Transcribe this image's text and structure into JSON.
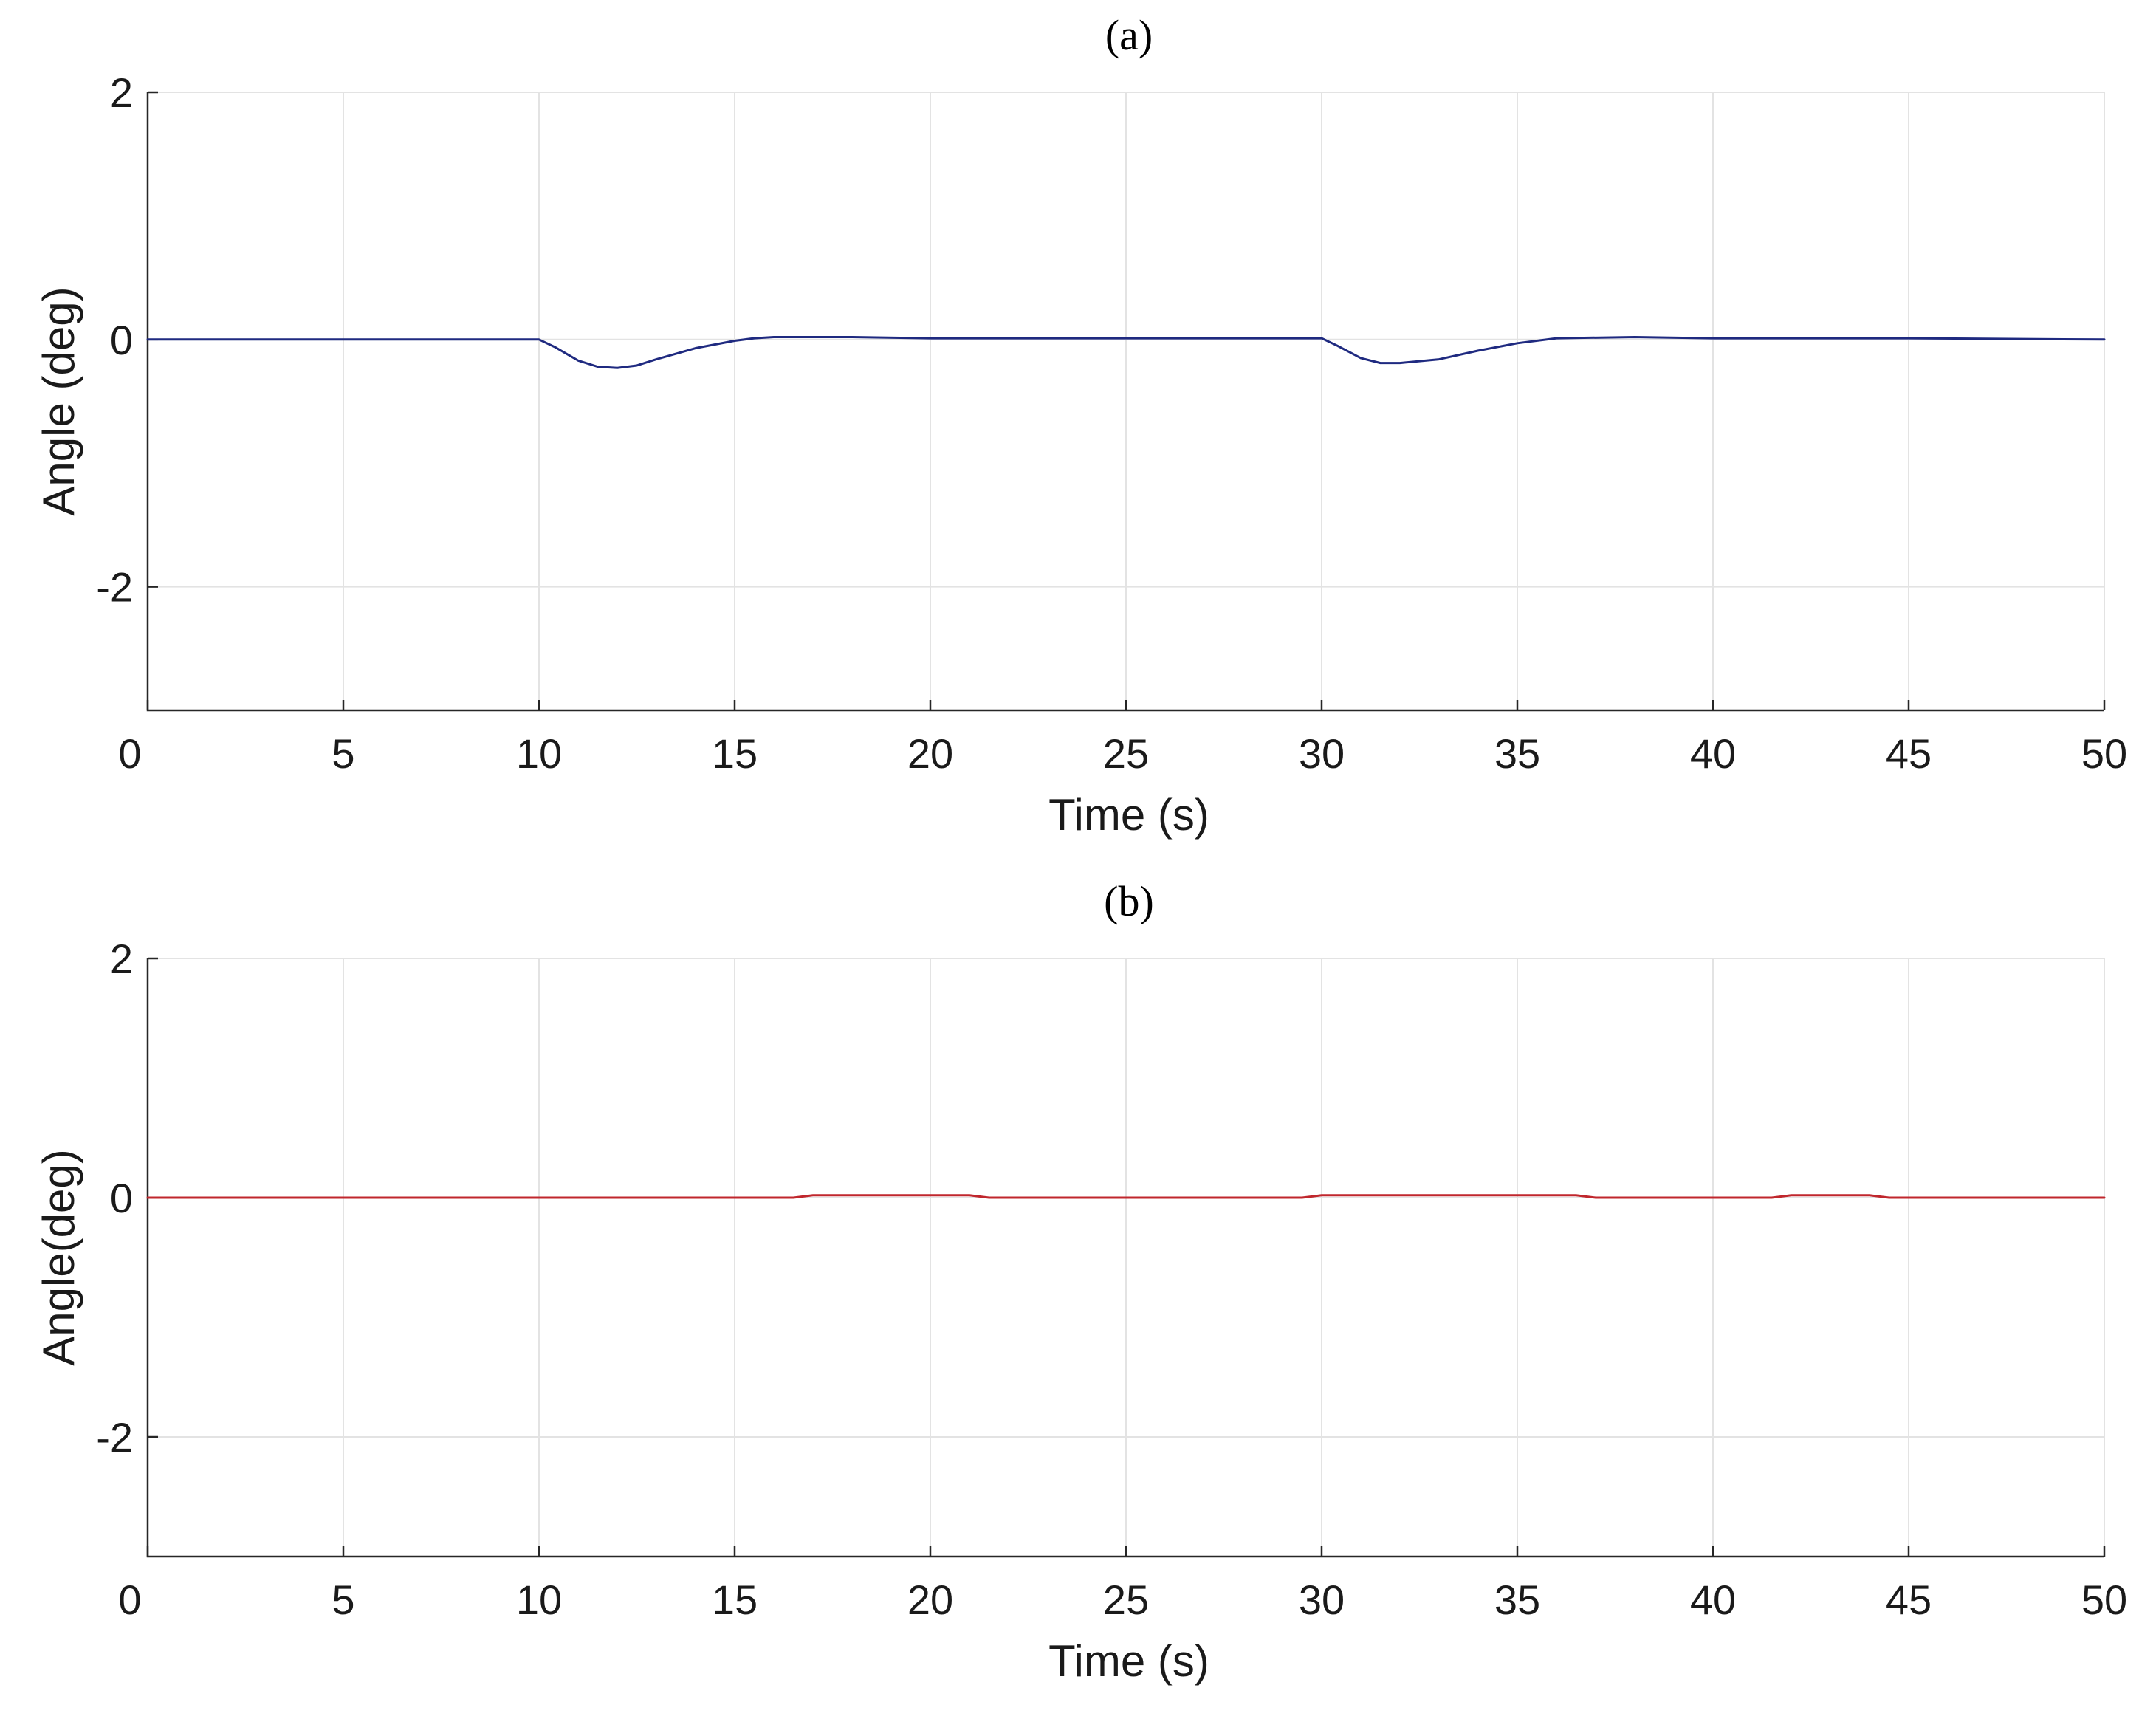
{
  "chart_data": [
    {
      "type": "line",
      "title": "(a)",
      "xlabel": "Time (s)",
      "ylabel": "Angle (deg)",
      "xlim": [
        0,
        50
      ],
      "ylim": [
        -3,
        2
      ],
      "xticks": [
        0,
        5,
        10,
        15,
        20,
        25,
        30,
        35,
        40,
        45,
        50
      ],
      "yticks": [
        -2,
        0,
        2
      ],
      "grid": true,
      "series": [
        {
          "color": "#1f2a80",
          "x": [
            0,
            10,
            10.4,
            11,
            11.5,
            12,
            12.5,
            13,
            14,
            15,
            15.5,
            16,
            18,
            20,
            25,
            30,
            30.4,
            31,
            31.5,
            32,
            33,
            34,
            35,
            36,
            38,
            40,
            45,
            50
          ],
          "y": [
            0,
            0,
            -0.06,
            -0.17,
            -0.22,
            -0.23,
            -0.21,
            -0.16,
            -0.07,
            -0.01,
            0.01,
            0.02,
            0.02,
            0.01,
            0.01,
            0.01,
            -0.05,
            -0.15,
            -0.19,
            -0.19,
            -0.16,
            -0.09,
            -0.03,
            0.01,
            0.02,
            0.01,
            0.01,
            0.0
          ]
        }
      ]
    },
    {
      "type": "line",
      "title": "(b)",
      "xlabel": "Time (s)",
      "ylabel": "Angle(deg)",
      "xlim": [
        0,
        50
      ],
      "ylim": [
        -3,
        2
      ],
      "xticks": [
        0,
        5,
        10,
        15,
        20,
        25,
        30,
        35,
        40,
        45,
        50
      ],
      "yticks": [
        -2,
        0,
        2
      ],
      "grid": true,
      "series": [
        {
          "color": "#c0272d",
          "x": [
            0,
            16.5,
            17,
            21,
            21.5,
            29.5,
            30,
            36.5,
            37,
            41.5,
            42,
            44,
            44.5,
            50
          ],
          "y": [
            0,
            0,
            0.02,
            0.02,
            0,
            0,
            0.02,
            0.02,
            0,
            0,
            0.02,
            0.02,
            0,
            0
          ]
        }
      ]
    }
  ]
}
